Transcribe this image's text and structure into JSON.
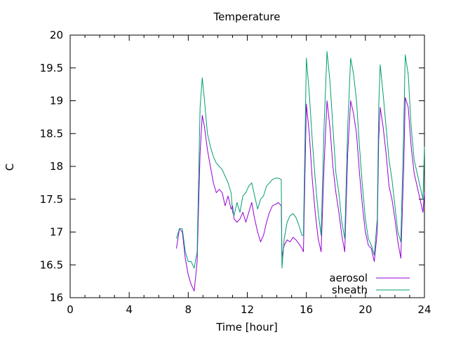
{
  "chart_data": {
    "type": "line",
    "title": "Temperature",
    "xlabel": "Time [hour]",
    "ylabel": "C",
    "xlim": [
      0,
      24
    ],
    "ylim": [
      16,
      20
    ],
    "xticks": [
      0,
      4,
      8,
      12,
      16,
      20,
      24
    ],
    "yticks": [
      16,
      16.5,
      17,
      17.5,
      18,
      18.5,
      19,
      19.5,
      20
    ],
    "grid": false,
    "legend_position": "bottom-right",
    "series": [
      {
        "name": "aerosol",
        "color": "#9400d3",
        "x": [
          7.2,
          7.4,
          7.6,
          7.8,
          8.0,
          8.2,
          8.4,
          8.6,
          8.7,
          8.8,
          8.95,
          9.1,
          9.3,
          9.5,
          9.7,
          9.9,
          10.1,
          10.3,
          10.5,
          10.7,
          10.9,
          11.0,
          11.1,
          11.3,
          11.5,
          11.7,
          11.9,
          12.1,
          12.3,
          12.5,
          12.7,
          12.9,
          13.1,
          13.3,
          13.5,
          13.7,
          13.9,
          14.1,
          14.3,
          14.35,
          14.5,
          14.7,
          14.9,
          15.1,
          15.3,
          15.5,
          15.7,
          15.8,
          16.0,
          16.2,
          16.4,
          16.6,
          16.8,
          17.0,
          17.2,
          17.4,
          17.6,
          17.8,
          18.0,
          18.2,
          18.4,
          18.6,
          18.8,
          19.0,
          19.2,
          19.4,
          19.6,
          19.8,
          20.0,
          20.2,
          20.4,
          20.6,
          20.8,
          20.9,
          21.0,
          21.2,
          21.4,
          21.6,
          21.8,
          22.0,
          22.2,
          22.4,
          22.6,
          22.7,
          22.9,
          23.1,
          23.3,
          23.5,
          23.7,
          23.9,
          24.0
        ],
        "y": [
          16.75,
          17.05,
          17.0,
          16.6,
          16.35,
          16.2,
          16.1,
          16.55,
          17.4,
          18.2,
          18.78,
          18.6,
          18.25,
          18.0,
          17.75,
          17.6,
          17.65,
          17.6,
          17.4,
          17.55,
          17.35,
          17.4,
          17.2,
          17.15,
          17.2,
          17.3,
          17.15,
          17.3,
          17.45,
          17.2,
          17.0,
          16.85,
          16.95,
          17.15,
          17.3,
          17.4,
          17.42,
          17.45,
          17.4,
          16.62,
          16.8,
          16.88,
          16.85,
          16.92,
          16.88,
          16.82,
          16.75,
          16.7,
          18.95,
          18.5,
          17.8,
          17.3,
          16.9,
          16.7,
          18.0,
          19.0,
          18.6,
          18.0,
          17.6,
          17.3,
          16.95,
          16.7,
          18.2,
          19.0,
          18.8,
          18.5,
          17.9,
          17.4,
          17.0,
          16.8,
          16.75,
          16.55,
          17.0,
          18.4,
          18.9,
          18.6,
          18.2,
          17.7,
          17.5,
          17.2,
          16.85,
          16.6,
          18.0,
          19.05,
          18.9,
          18.3,
          17.9,
          17.7,
          17.5,
          17.3,
          17.6
        ]
      },
      {
        "name": "sheath",
        "color": "#009e73",
        "x": [
          7.2,
          7.4,
          7.6,
          7.8,
          8.0,
          8.2,
          8.4,
          8.6,
          8.7,
          8.8,
          8.95,
          9.1,
          9.3,
          9.5,
          9.7,
          9.9,
          10.1,
          10.3,
          10.5,
          10.7,
          10.9,
          11.0,
          11.1,
          11.3,
          11.5,
          11.7,
          11.9,
          12.1,
          12.3,
          12.5,
          12.7,
          12.9,
          13.1,
          13.3,
          13.5,
          13.7,
          13.9,
          14.1,
          14.3,
          14.35,
          14.5,
          14.7,
          14.9,
          15.1,
          15.3,
          15.5,
          15.7,
          15.8,
          16.0,
          16.2,
          16.4,
          16.6,
          16.8,
          17.0,
          17.2,
          17.4,
          17.6,
          17.8,
          18.0,
          18.2,
          18.4,
          18.6,
          18.8,
          19.0,
          19.2,
          19.4,
          19.6,
          19.8,
          20.0,
          20.2,
          20.4,
          20.6,
          20.8,
          20.9,
          21.0,
          21.2,
          21.4,
          21.6,
          21.8,
          22.0,
          22.2,
          22.4,
          22.6,
          22.7,
          22.9,
          23.1,
          23.3,
          23.5,
          23.7,
          23.9,
          24.0
        ],
        "y": [
          16.9,
          17.05,
          17.05,
          16.7,
          16.55,
          16.55,
          16.45,
          16.7,
          17.8,
          18.9,
          19.35,
          19.0,
          18.5,
          18.3,
          18.15,
          18.05,
          18.0,
          17.95,
          17.85,
          17.75,
          17.6,
          17.3,
          17.25,
          17.45,
          17.3,
          17.55,
          17.6,
          17.7,
          17.75,
          17.55,
          17.35,
          17.5,
          17.55,
          17.7,
          17.75,
          17.8,
          17.82,
          17.82,
          17.8,
          16.45,
          16.9,
          17.15,
          17.25,
          17.28,
          17.22,
          17.1,
          16.95,
          16.95,
          19.65,
          19.1,
          18.4,
          17.8,
          17.3,
          16.95,
          18.6,
          19.75,
          19.3,
          18.6,
          17.9,
          17.6,
          17.15,
          16.9,
          18.6,
          19.65,
          19.4,
          19.0,
          18.3,
          17.7,
          17.2,
          16.9,
          16.8,
          16.65,
          17.2,
          18.9,
          19.55,
          19.1,
          18.6,
          18.1,
          17.8,
          17.4,
          17.0,
          16.85,
          18.6,
          19.7,
          19.4,
          18.6,
          18.1,
          17.9,
          17.7,
          17.5,
          18.3
        ]
      }
    ]
  }
}
